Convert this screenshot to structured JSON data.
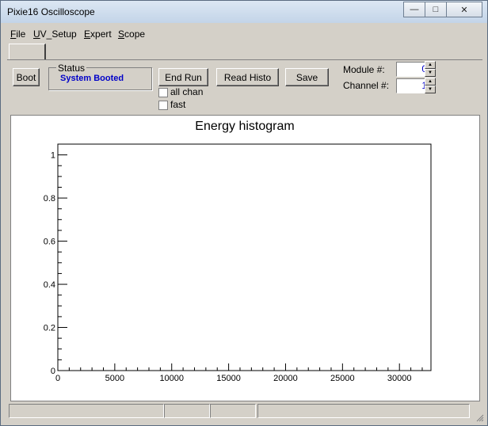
{
  "window": {
    "title": "Pixie16 Oscilloscope",
    "controls": {
      "minimize": "—",
      "maximize": "□",
      "close": "✕"
    }
  },
  "menu": [
    {
      "accel": "F",
      "rest": "ile"
    },
    {
      "accel": "U",
      "rest": "V_Setup"
    },
    {
      "accel": "E",
      "rest": "xpert"
    },
    {
      "accel": "S",
      "rest": "cope"
    }
  ],
  "toolbar": {
    "boot": "Boot",
    "status_legend": "Status",
    "status_value": "System Booted",
    "end_run": "End Run",
    "read_histo": "Read Histo",
    "save": "Save",
    "all_chan": "all chan",
    "fast": "fast",
    "module_label": "Module #:",
    "module_value": "0",
    "channel_label": "Channel #:",
    "channel_value": "1"
  },
  "chart_data": {
    "type": "line",
    "title": "Energy histogram",
    "xlabel": "",
    "ylabel": "",
    "xlim": [
      0,
      32768
    ],
    "ylim": [
      0,
      1.05
    ],
    "x_ticks": [
      0,
      5000,
      10000,
      15000,
      20000,
      25000,
      30000
    ],
    "y_ticks": [
      0,
      0.2,
      0.4,
      0.6,
      0.8,
      1
    ],
    "x_tick_labels": [
      "0",
      "5000",
      "10000",
      "15000",
      "20000",
      "25000",
      "30000"
    ],
    "y_tick_labels": [
      "0",
      "0.2",
      "0.4",
      "0.6",
      "0.8",
      "1"
    ],
    "series": [],
    "grid": false
  }
}
